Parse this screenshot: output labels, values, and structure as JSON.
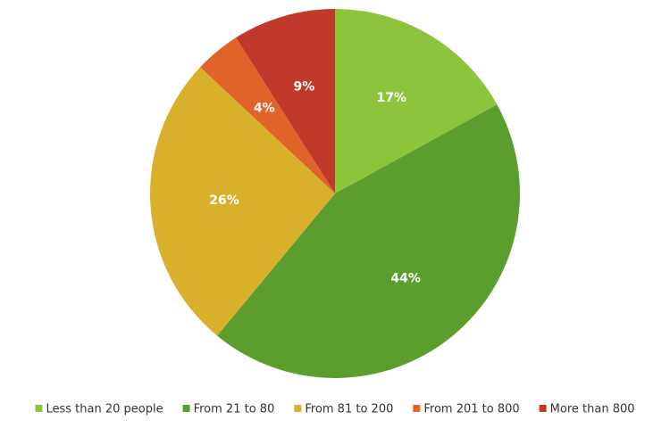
{
  "chart_data": {
    "type": "pie",
    "categories": [
      "Less than 20 people",
      "From 21 to 80",
      "From 81 to 200",
      "From 201 to 800",
      "More than 800"
    ],
    "values": [
      17,
      44,
      26,
      4,
      9
    ],
    "value_labels": [
      "17%",
      "44%",
      "26%",
      "4%",
      "9%"
    ],
    "colors": [
      "#8cc43c",
      "#5c9e2e",
      "#d9b02b",
      "#e0632a",
      "#c1392b"
    ],
    "legend": "bottom"
  }
}
